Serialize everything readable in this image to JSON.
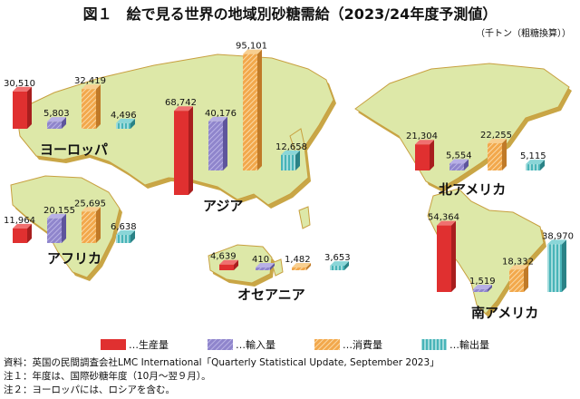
{
  "title": "図１　絵で見る世界の地域別砂糖需給（2023/24年度予測値）",
  "unit": "（千トン（粗糖換算））",
  "chart_data": {
    "type": "bar",
    "title": "図１　絵で見る世界の地域別砂糖需給（2023/24年度予測値）",
    "unit": "千トン（粗糖換算）",
    "categories": [
      "ヨーロッパ",
      "アフリカ",
      "アジア",
      "オセアニア",
      "北アメリカ",
      "南アメリカ"
    ],
    "series": [
      {
        "name": "生産量",
        "values": [
          30510,
          11964,
          68742,
          4639,
          21304,
          54364
        ],
        "labels": [
          "30,510",
          "11,964",
          "68,742",
          "4,639",
          "21,304",
          "54,364"
        ]
      },
      {
        "name": "輸入量",
        "values": [
          5803,
          20155,
          40176,
          410,
          5554,
          1519
        ],
        "labels": [
          "5,803",
          "20,155",
          "40,176",
          "410",
          "5,554",
          "1,519"
        ]
      },
      {
        "name": "消費量",
        "values": [
          32419,
          25695,
          95101,
          1482,
          22255,
          18332
        ],
        "labels": [
          "32,419",
          "25,695",
          "95,101",
          "1,482",
          "22,255",
          "18,332"
        ]
      },
      {
        "name": "輸出量",
        "values": [
          4496,
          6638,
          12658,
          3653,
          5115,
          38970
        ],
        "labels": [
          "4,496",
          "6,638",
          "12,658",
          "3,653",
          "5,115",
          "38,970"
        ]
      }
    ],
    "colors": {
      "生産量": "#e03030",
      "輸入量": "#8f85cc",
      "消費量": "#f2a84c",
      "輸出量": "#48b4b8"
    },
    "map_colors": {
      "land": "#dde8a8",
      "land_edge": "#c8a040"
    }
  },
  "legend": [
    "…生産量",
    "…輸入量",
    "…消費量",
    "…輸出量"
  ],
  "notes": [
    "資料：英国の民間調査会社LMC International「Quarterly Statistical Update, September 2023」",
    "注１：年度は、国際砂糖年度（10月～翌９月）。",
    "注２：ヨーロッパには、ロシアを含む。"
  ]
}
